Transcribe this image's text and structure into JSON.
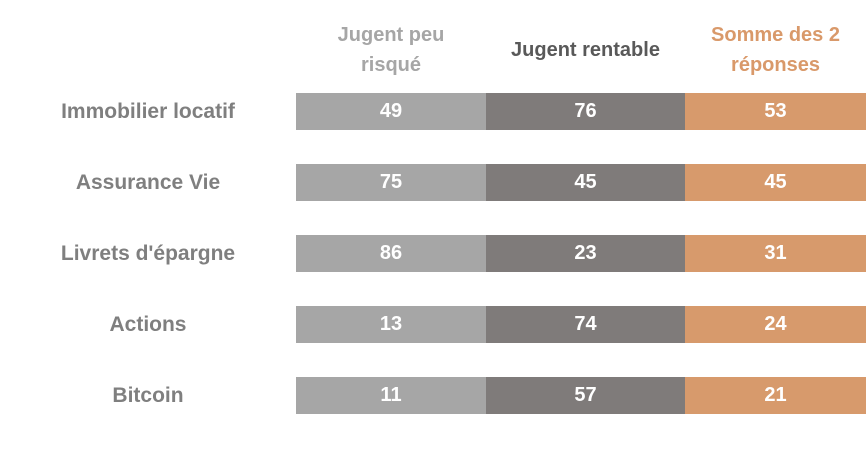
{
  "table": {
    "columns": [
      "Jugent peu risqué",
      "Jugent rentable",
      "Somme des 2 réponses"
    ],
    "rows": [
      [
        "Immobilier locatif",
        49,
        76,
        53
      ],
      [
        "Assurance Vie",
        75,
        45,
        45
      ],
      [
        "Livrets d'épargne",
        86,
        23,
        31
      ],
      [
        "Actions",
        13,
        74,
        24
      ],
      [
        "Bitcoin",
        11,
        57,
        21
      ]
    ]
  }
}
